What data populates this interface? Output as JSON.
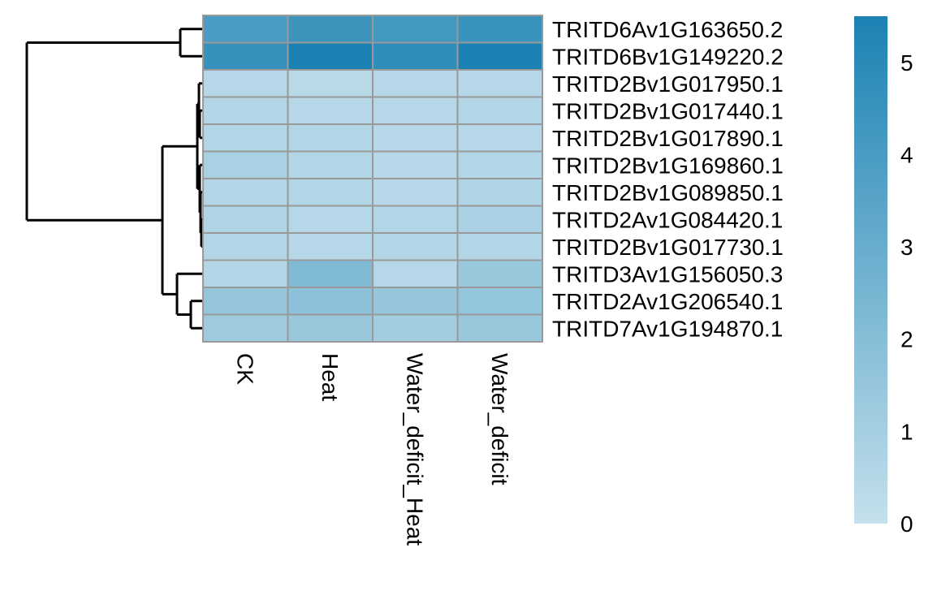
{
  "chart_data": {
    "type": "heatmap",
    "title": "",
    "rows": [
      "TRITD6Av1G163650.2",
      "TRITD6Bv1G149220.2",
      "TRITD2Bv1G017950.1",
      "TRITD2Bv1G017440.1",
      "TRITD2Bv1G017890.1",
      "TRITD2Bv1G169860.1",
      "TRITD2Bv1G089850.1",
      "TRITD2Av1G084420.1",
      "TRITD2Bv1G017730.1",
      "TRITD3Av1G156050.3",
      "TRITD2Av1G206540.1",
      "TRITD7Av1G194870.1"
    ],
    "columns": [
      "CK",
      "Heat",
      "Water_deficit_Heat",
      "Water_deficit"
    ],
    "values": [
      [
        4.0,
        4.4,
        4.2,
        4.5
      ],
      [
        4.6,
        5.5,
        4.8,
        5.5
      ],
      [
        0.5,
        0.4,
        0.5,
        0.5
      ],
      [
        0.6,
        0.5,
        0.5,
        0.6
      ],
      [
        0.6,
        0.6,
        0.5,
        0.5
      ],
      [
        0.9,
        0.6,
        0.5,
        0.6
      ],
      [
        0.6,
        0.6,
        0.5,
        0.7
      ],
      [
        0.7,
        0.5,
        0.6,
        0.8
      ],
      [
        0.6,
        0.5,
        0.6,
        0.6
      ],
      [
        0.6,
        2.2,
        0.5,
        1.4
      ],
      [
        1.5,
        1.8,
        1.5,
        1.6
      ],
      [
        1.2,
        1.4,
        1.1,
        1.4
      ]
    ],
    "legend": {
      "ticks": [
        "0",
        "1",
        "2",
        "3",
        "4",
        "5"
      ],
      "min": 0,
      "max": 5.5,
      "color_low": "#c4e0ec",
      "color_high": "#1b82b3"
    },
    "grid_color": "#999999",
    "dendrogram_color": "#000000"
  }
}
